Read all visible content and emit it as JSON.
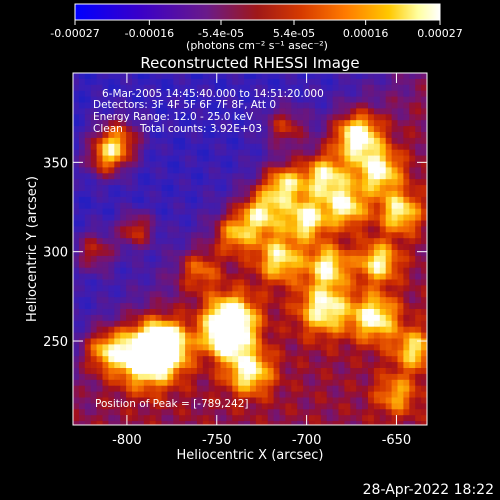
{
  "colorbar": {
    "tick_labels": [
      "-0.00027",
      "-0.00016",
      "-5.4e-05",
      "5.4e-05",
      "0.00016",
      "0.00027"
    ],
    "tick_values": [
      -0.00027,
      -0.00016,
      -5.4e-05,
      5.4e-05,
      0.00016,
      0.00027
    ],
    "units_label": "(photons cm⁻² s⁻¹ asec⁻²)",
    "colors": [
      "#0000ff",
      "#3a00c8",
      "#6a1a8a",
      "#a01818",
      "#d63a00",
      "#ff7a00",
      "#ffc800",
      "#ffffa0",
      "#ffffff"
    ]
  },
  "chart_data": {
    "type": "heatmap",
    "title": "Reconstructed RHESSI Image",
    "xlabel": "Heliocentric X (arcsec)",
    "ylabel": "Heliocentric Y (arcsec)",
    "xlim": [
      -830,
      -633
    ],
    "ylim": [
      203,
      400
    ],
    "x_ticks": [
      -800,
      -750,
      -700,
      -650
    ],
    "y_ticks": [
      250,
      300,
      350
    ],
    "x_tick_labels": [
      "-800",
      "-750",
      "-700",
      "-650"
    ],
    "y_tick_labels": [
      "250",
      "300",
      "350"
    ],
    "peak": [
      -789,
      242
    ]
  },
  "annotations": {
    "time_range": "6-Mar-2005 14:45:40.000 to 14:51:20.000",
    "detectors": "Detectors: 3F 4F 5F 6F 7F 8F, Att 0",
    "energy": "Energy Range: 12.0 - 25.0 keV",
    "clean": "Clean",
    "total_counts": "Total counts: 3.92E+03",
    "peak_label": "Position of Peak = [-789,242]"
  },
  "footer": {
    "date": "28-Apr-2022 18:22"
  }
}
